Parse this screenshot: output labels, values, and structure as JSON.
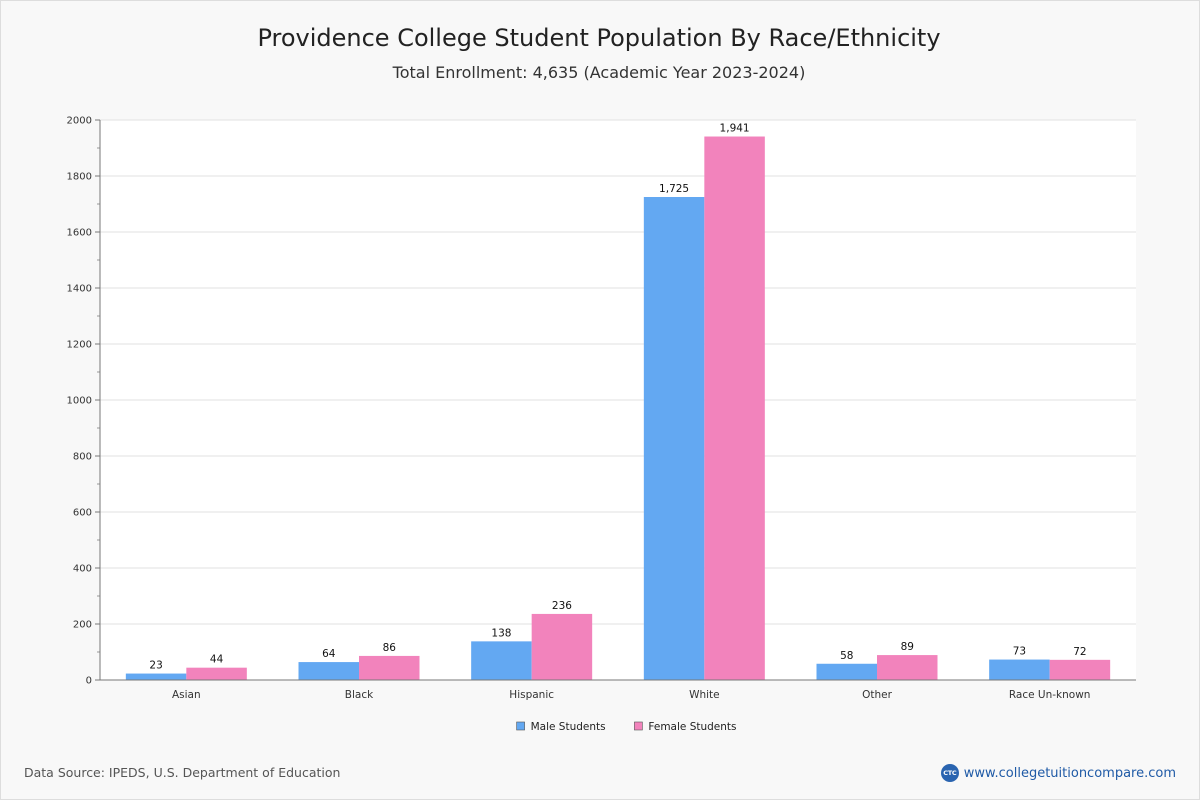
{
  "chart_data": {
    "type": "bar",
    "title": "Providence College Student Population By Race/Ethnicity",
    "subtitle": "Total Enrollment: 4,635 (Academic Year 2023-2024)",
    "categories": [
      "Asian",
      "Black",
      "Hispanic",
      "White",
      "Other",
      "Race Un-known"
    ],
    "series": [
      {
        "name": "Male Students",
        "color": "#63a8f2",
        "values": [
          23,
          64,
          138,
          1725,
          58,
          73
        ],
        "labels": [
          "23",
          "64",
          "138",
          "1,725",
          "58",
          "73"
        ]
      },
      {
        "name": "Female Students",
        "color": "#f283bc",
        "values": [
          44,
          86,
          236,
          1941,
          89,
          72
        ],
        "labels": [
          "44",
          "86",
          "236",
          "1,941",
          "89",
          "72"
        ]
      }
    ],
    "ylim": [
      0,
      2000
    ],
    "yticks": [
      0,
      200,
      400,
      600,
      800,
      1000,
      1200,
      1400,
      1600,
      1800,
      2000
    ],
    "grid": true,
    "legend": "bottom-center"
  },
  "footer": {
    "source": "Data Source: IPEDS, U.S. Department of Education",
    "brand_logo": "CTC",
    "brand_url": "www.collegetuitioncompare.com"
  }
}
